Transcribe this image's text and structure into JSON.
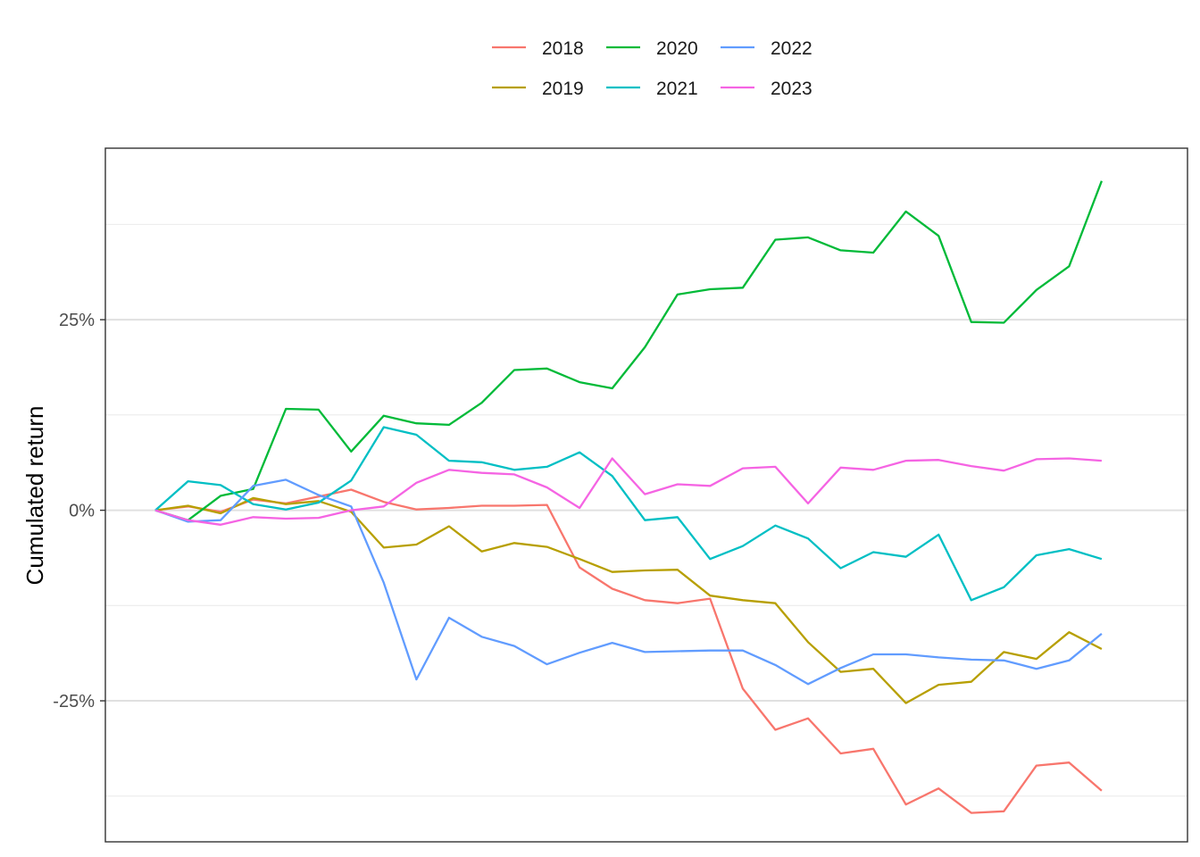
{
  "chart_data": {
    "type": "line",
    "xlabel": "",
    "ylabel": "Cumulated return",
    "y_axis_unit": "percent",
    "ylim": [
      -43.5,
      47.5
    ],
    "y_ticks": [
      -25,
      0,
      25
    ],
    "y_tick_labels": [
      "-25%",
      "0%",
      "25%"
    ],
    "x_axis_shown": false,
    "grid": true,
    "legend_position": "top",
    "series": [
      {
        "name": "2018",
        "color": "#F8766D",
        "values": [
          0,
          0.5,
          -0.2,
          1.4,
          0.9,
          1.8,
          2.7,
          1.1,
          0.1,
          0.3,
          0.6,
          0.6,
          0.7,
          -7.5,
          -10.3,
          -11.8,
          -12.2,
          -11.6,
          -23.4,
          -28.8,
          -27.3,
          -31.9,
          -31.3,
          -38.6,
          -36.5,
          -39.7,
          -39.5,
          -33.5,
          -33.1,
          -36.8
        ]
      },
      {
        "name": "2019",
        "color": "#B79F00",
        "values": [
          0,
          0.6,
          -0.4,
          1.6,
          0.8,
          1.2,
          -0.2,
          -4.9,
          -4.5,
          -2.1,
          -5.4,
          -4.3,
          -4.8,
          -6.4,
          -8.1,
          -7.9,
          -7.8,
          -11.2,
          -11.8,
          -12.2,
          -17.3,
          -21.2,
          -20.8,
          -25.3,
          -22.9,
          -22.5,
          -18.6,
          -19.5,
          -16.0,
          -18.2
        ]
      },
      {
        "name": "2020",
        "color": "#00BA38",
        "values": [
          0,
          -1.3,
          1.9,
          2.8,
          13.3,
          13.2,
          7.7,
          12.4,
          11.4,
          11.2,
          14.1,
          18.4,
          18.6,
          16.8,
          16.0,
          21.4,
          28.3,
          29.0,
          29.2,
          35.5,
          35.8,
          34.1,
          33.8,
          39.2,
          36.0,
          24.7,
          24.6,
          28.9,
          32.0,
          43.2
        ]
      },
      {
        "name": "2021",
        "color": "#00BFC4",
        "values": [
          0,
          3.8,
          3.3,
          0.8,
          0.1,
          1.0,
          3.9,
          10.9,
          9.9,
          6.5,
          6.3,
          5.3,
          5.7,
          7.6,
          4.5,
          -1.3,
          -0.9,
          -6.4,
          -4.7,
          -2.0,
          -3.7,
          -7.6,
          -5.5,
          -6.1,
          -3.2,
          -11.8,
          -10.1,
          -5.9,
          -5.1,
          -6.4
        ]
      },
      {
        "name": "2022",
        "color": "#619CFF",
        "values": [
          0,
          -1.5,
          -1.3,
          3.2,
          4.0,
          2.0,
          0.5,
          -9.5,
          -22.2,
          -14.1,
          -16.6,
          -17.8,
          -20.2,
          -18.7,
          -17.4,
          -18.6,
          -18.5,
          -18.4,
          -18.4,
          -20.3,
          -22.8,
          -20.7,
          -18.9,
          -18.9,
          -19.3,
          -19.6,
          -19.7,
          -20.8,
          -19.7,
          -16.2
        ]
      },
      {
        "name": "2023",
        "color": "#F564E3",
        "values": [
          0,
          -1.3,
          -1.9,
          -0.9,
          -1.1,
          -1.0,
          0.0,
          0.5,
          3.6,
          5.3,
          4.9,
          4.7,
          3.0,
          0.3,
          6.8,
          2.1,
          3.4,
          3.2,
          5.5,
          5.7,
          0.9,
          5.6,
          5.3,
          6.5,
          6.6,
          5.8,
          5.2,
          6.7,
          6.8,
          6.5
        ]
      }
    ]
  }
}
